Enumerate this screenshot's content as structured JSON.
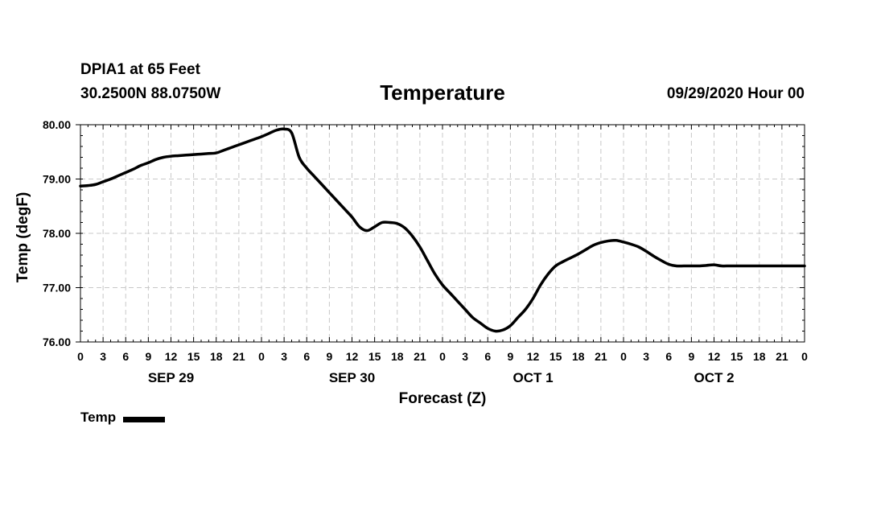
{
  "header": {
    "station": "DPIA1 at 65 Feet",
    "coords": "30.2500N 88.0750W",
    "title": "Temperature",
    "datetime": "09/29/2020 Hour 00"
  },
  "legend": {
    "label": "Temp",
    "color": "#000000"
  },
  "chart_data": {
    "type": "line",
    "title": "Temperature",
    "xlabel": "Forecast (Z)",
    "ylabel": "Temp (degF)",
    "ylim": [
      76.0,
      80.0
    ],
    "xlim_hours": [
      0,
      96
    ],
    "y_ticks": [
      "76.00",
      "77.00",
      "78.00",
      "79.00",
      "80.00"
    ],
    "x_tick_labels": [
      "0",
      "3",
      "6",
      "9",
      "12",
      "15",
      "18",
      "21",
      "0",
      "3",
      "6",
      "9",
      "12",
      "15",
      "18",
      "21",
      "0",
      "3",
      "6",
      "9",
      "12",
      "15",
      "18",
      "21",
      "0",
      "3",
      "6",
      "9",
      "12",
      "15",
      "18",
      "21",
      "0"
    ],
    "day_labels": [
      {
        "label": "SEP 29",
        "hour": 12
      },
      {
        "label": "SEP 30",
        "hour": 36
      },
      {
        "label": "OCT 1",
        "hour": 60
      },
      {
        "label": "OCT 2",
        "hour": 84
      }
    ],
    "grid": true,
    "legend_position": "bottom-left",
    "series": [
      {
        "name": "Temp",
        "color": "#000000",
        "x": [
          0,
          1,
          2,
          3,
          4,
          5,
          6,
          7,
          8,
          9,
          10,
          11,
          12,
          13,
          14,
          15,
          16,
          17,
          18,
          19,
          20,
          21,
          22,
          23,
          24,
          25,
          26,
          27,
          28,
          29,
          30,
          31,
          32,
          33,
          34,
          35,
          36,
          37,
          38,
          39,
          40,
          41,
          42,
          43,
          44,
          45,
          46,
          47,
          48,
          49,
          50,
          51,
          52,
          53,
          54,
          55,
          56,
          57,
          58,
          59,
          60,
          61,
          62,
          63,
          64,
          65,
          66,
          67,
          68,
          69,
          70,
          71,
          72,
          73,
          74,
          75,
          76,
          77,
          78,
          79,
          80,
          81,
          82,
          83,
          84,
          85,
          86,
          87,
          88,
          89,
          90,
          91,
          92,
          93,
          94,
          95,
          96
        ],
        "y": [
          78.87,
          78.88,
          78.9,
          78.95,
          79.0,
          79.06,
          79.12,
          79.18,
          79.25,
          79.3,
          79.36,
          79.4,
          79.42,
          79.43,
          79.44,
          79.45,
          79.46,
          79.47,
          79.48,
          79.53,
          79.58,
          79.63,
          79.68,
          79.73,
          79.78,
          79.84,
          79.9,
          79.92,
          79.85,
          79.4,
          79.2,
          79.05,
          78.9,
          78.75,
          78.6,
          78.45,
          78.3,
          78.12,
          78.05,
          78.12,
          78.2,
          78.2,
          78.18,
          78.1,
          77.95,
          77.75,
          77.5,
          77.25,
          77.05,
          76.9,
          76.75,
          76.6,
          76.45,
          76.35,
          76.25,
          76.2,
          76.22,
          76.3,
          76.45,
          76.6,
          76.8,
          77.05,
          77.25,
          77.4,
          77.48,
          77.55,
          77.62,
          77.7,
          77.78,
          77.83,
          77.86,
          77.87,
          77.84,
          77.8,
          77.75,
          77.67,
          77.58,
          77.5,
          77.43,
          77.4,
          77.4,
          77.4,
          77.4,
          77.41,
          77.42,
          77.4,
          77.4,
          77.4,
          77.4,
          77.4,
          77.4,
          77.4,
          77.4,
          77.4,
          77.4,
          77.4,
          77.4
        ]
      }
    ]
  }
}
